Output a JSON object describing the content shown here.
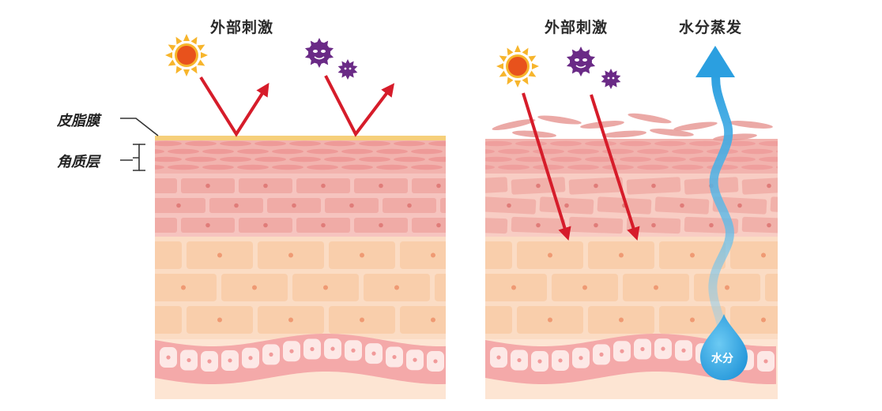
{
  "left_panel": {
    "caption": "外部刺激",
    "labels": {
      "sebum_film": "皮脂膜",
      "stratum_corneum": "角质层"
    },
    "icons": [
      "sun-icon",
      "germ-icon",
      "small-germ-icon"
    ]
  },
  "right_panel": {
    "caption_stimulus": "外部刺激",
    "caption_evaporation": "水分蒸发",
    "water_drop_label": "水分",
    "icons": [
      "sun-icon",
      "germ-icon",
      "small-germ-icon",
      "water-drop-icon"
    ]
  },
  "colors": {
    "sebum": "#f6cf7a",
    "corneum": "#f2b3ae",
    "corneum_cell": "#ee9a98",
    "granular": "#f6c4bf",
    "granular_cell": "#f0aba6",
    "spinous": "#fbdcc4",
    "spinous_cell": "#f8c9a3",
    "basal_band": "#f4a9a9",
    "basal_cell": "#fde8e6",
    "dermis": "#fde5d3",
    "arrow": "#d61c2a",
    "water": "#35a7e0",
    "sun": "#f7b52c",
    "germ": "#6a2a86"
  }
}
